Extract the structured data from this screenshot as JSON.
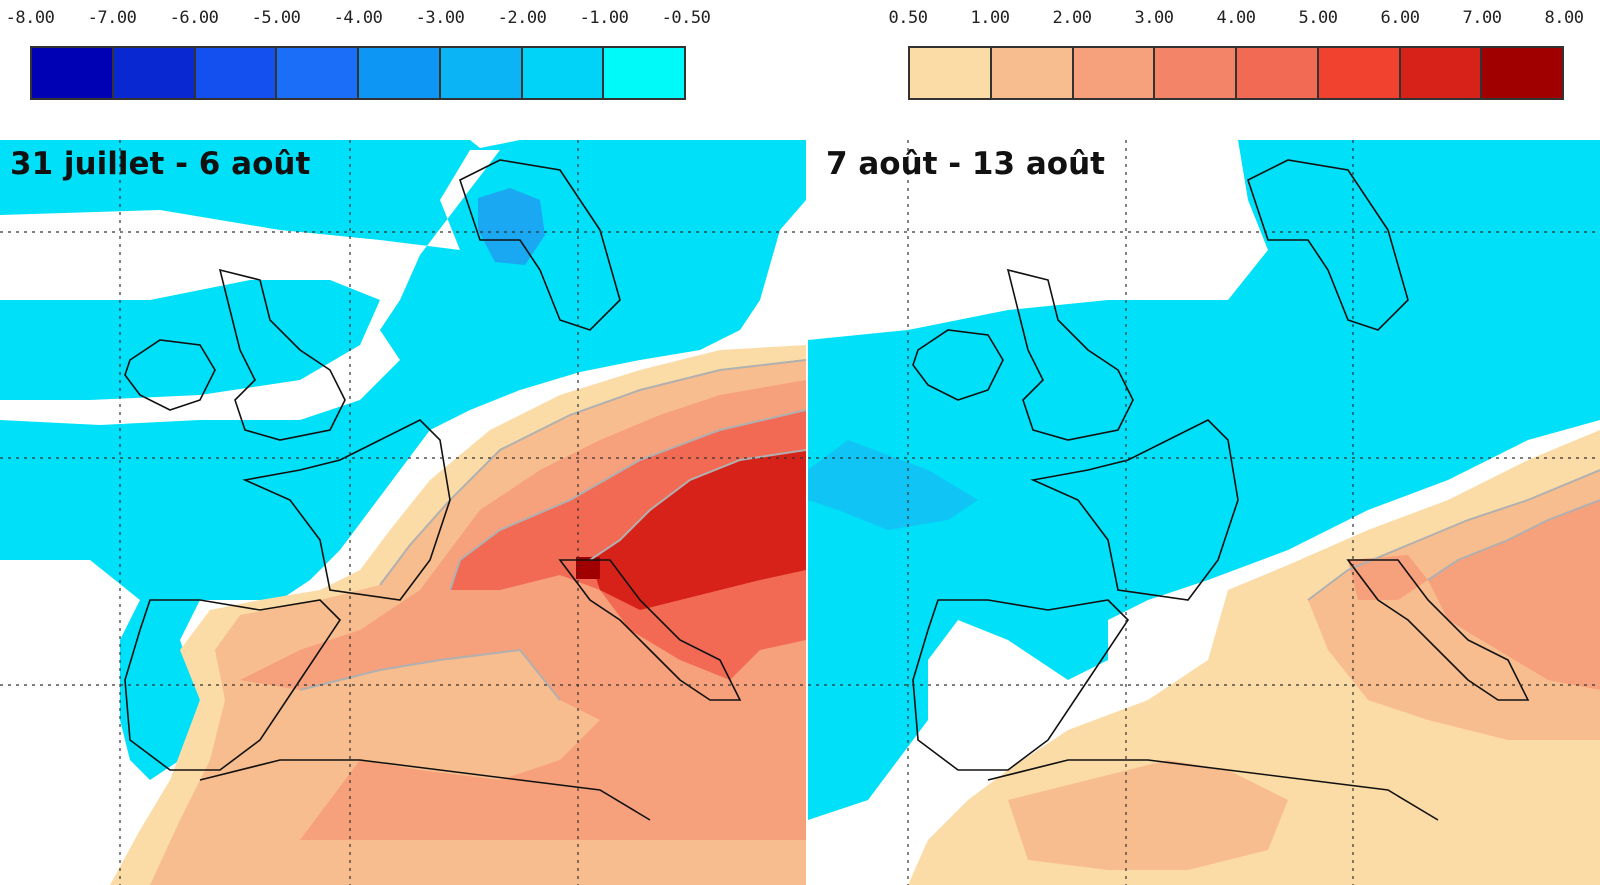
{
  "legend_negative": {
    "ticks": [
      "-8.00",
      "-7.00",
      "-6.00",
      "-5.00",
      "-4.00",
      "-3.00",
      "-2.00",
      "-1.00",
      "-0.50"
    ],
    "colors": [
      "#0000b4",
      "#0a28d2",
      "#1450f0",
      "#1a6ef8",
      "#0e96f5",
      "#0ab4f5",
      "#00d2f8",
      "#00fafa"
    ]
  },
  "legend_positive": {
    "ticks": [
      "0.50",
      "1.00",
      "2.00",
      "3.00",
      "4.00",
      "5.00",
      "6.00",
      "7.00",
      "8.00"
    ],
    "colors": [
      "#fcdca6",
      "#f8bd8e",
      "#f6a07c",
      "#f48468",
      "#f26a54",
      "#f0422f",
      "#d7221a",
      "#a00000"
    ]
  },
  "maps": [
    {
      "title": "31 juillet - 6 août"
    },
    {
      "title": "7 août - 13 août"
    }
  ],
  "palette": {
    "ocean_neutral": "#ffffff",
    "cool": "#00e0f8",
    "cool2": "#10c4f5",
    "cool3": "#1aa8f2",
    "warm1": "#fcdca6",
    "warm2": "#f8bd8e",
    "warm3": "#f6a07c",
    "warm4": "#f26a54",
    "warm5": "#d7221a",
    "warm6": "#a00000",
    "coast": "#111111",
    "contour": "#b0b0b0"
  }
}
